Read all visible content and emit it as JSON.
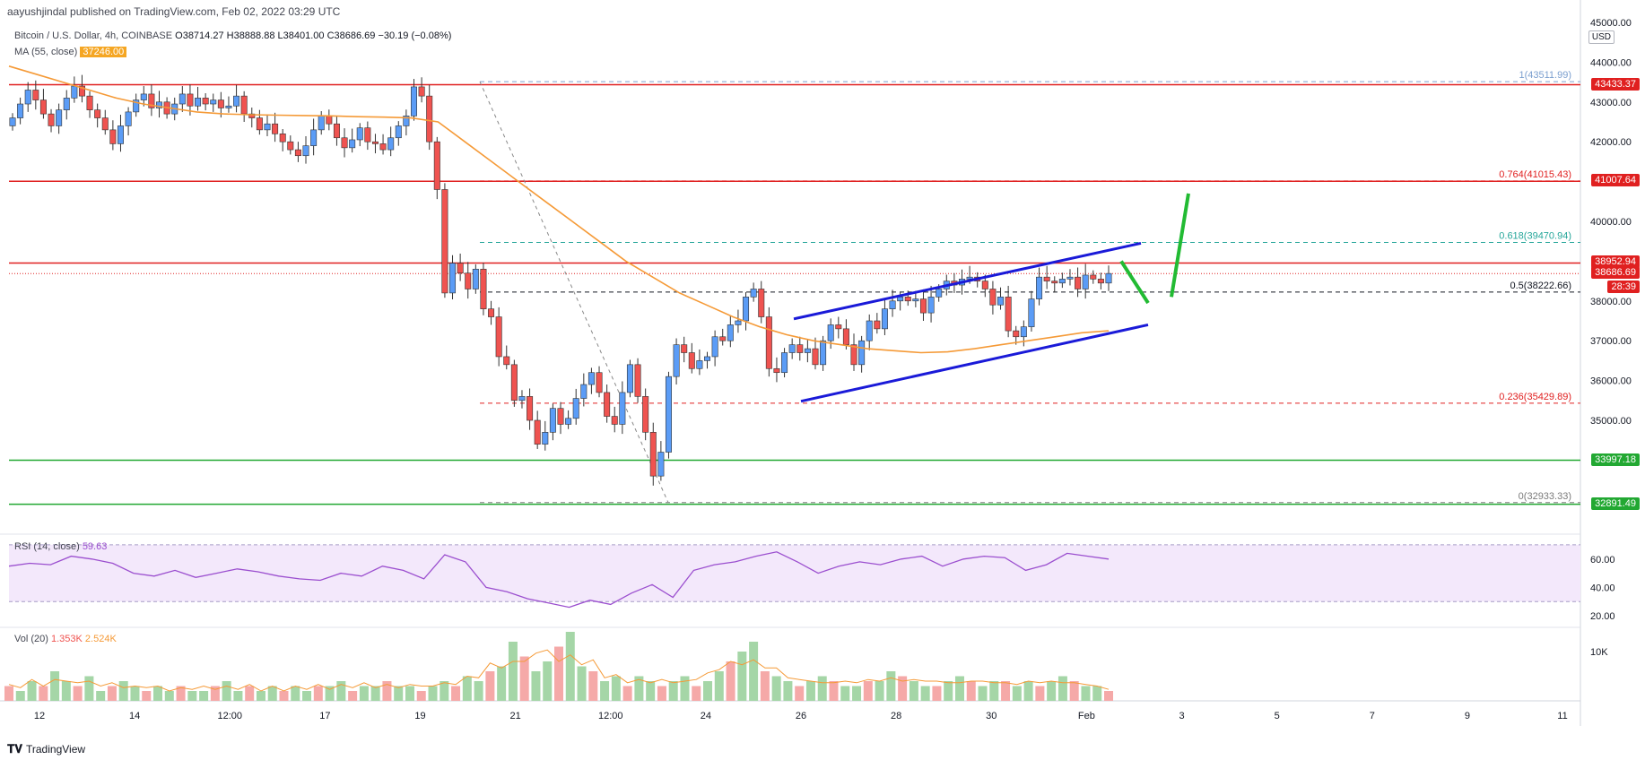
{
  "header": {
    "publisher": "aayushjindal published on TradingView.com, Feb 02, 2022 03:29 UTC",
    "symbol": "Bitcoin / U.S. Dollar, 4h, COINBASE",
    "ohlc": "O38714.27 H38888.88 L38401.00 C38686.69 −30.19 (−0.08%)",
    "ma_label": "MA (55, close)",
    "ma_value": "37246.00",
    "rsi_label": "RSI (14, close)",
    "rsi_value": "59.63",
    "vol_label": "Vol (20)",
    "vol_value1": "1.353K",
    "vol_value2": "2.524K",
    "currency": "USD"
  },
  "footer": {
    "brand": "TradingView",
    "logo_icon": "tradingview-logo-icon"
  },
  "colors": {
    "up": "#5b9cf6",
    "down": "#ef5350",
    "ma": "#f59a37",
    "resistance": "#e02020",
    "support": "#22a832",
    "channel": "#1a1ad8",
    "arrow": "#22bb33",
    "rsi": "#9b4fcf"
  },
  "price_axis": {
    "ticks": [
      "45000.00",
      "44000.00",
      "43000.00",
      "42000.00",
      "40000.00",
      "38000.00",
      "37000.00",
      "36000.00",
      "35000.00"
    ]
  },
  "time_axis": {
    "ticks": [
      "12",
      "14",
      "12:00",
      "17",
      "19",
      "21",
      "12:00",
      "24",
      "26",
      "28",
      "30",
      "Feb",
      "3",
      "5",
      "7",
      "9",
      "11"
    ]
  },
  "rsi_axis": {
    "ticks": [
      "60.00",
      "40.00",
      "20.00"
    ]
  },
  "vol_axis": {
    "ticks": [
      "10K"
    ]
  },
  "price_labels": [
    {
      "value": "43433.37",
      "kind": "resistance"
    },
    {
      "value": "41007.64",
      "kind": "resistance"
    },
    {
      "value": "38952.94",
      "kind": "resistance"
    },
    {
      "value": "38686.69",
      "kind": "current"
    },
    {
      "value": "28:39",
      "kind": "current"
    },
    {
      "value": "33997.18",
      "kind": "support"
    },
    {
      "value": "32891.49",
      "kind": "support"
    }
  ],
  "fib_labels": [
    {
      "text": "1(43511.99)",
      "level": 43511.99
    },
    {
      "text": "0.764(41015.43)",
      "level": 41015.43
    },
    {
      "text": "0.618(39470.94)",
      "level": 39470.94
    },
    {
      "text": "0.5(38222.66)",
      "level": 38222.66
    },
    {
      "text": "0.236(35429.89)",
      "level": 35429.89
    },
    {
      "text": "0(32933.33)",
      "level": 32933.33
    }
  ],
  "chart_data": {
    "type": "candlestick",
    "title": "Bitcoin / U.S. Dollar, 4h, COINBASE",
    "ylim": [
      32500,
      45000
    ],
    "horizontal_levels": {
      "resistance": [
        43433.37,
        41007.64,
        38952.94
      ],
      "support": [
        33997.18,
        32891.49
      ],
      "current": 38686.69
    },
    "close_path": [
      42600,
      42950,
      43300,
      43050,
      42700,
      42400,
      42800,
      43100,
      43400,
      43150,
      42800,
      42600,
      42300,
      41950,
      42400,
      42750,
      43050,
      43200,
      42850,
      43000,
      42700,
      42950,
      43200,
      42900,
      43100,
      42950,
      43050,
      42850,
      42900,
      43150,
      42700,
      42600,
      42300,
      42450,
      42200,
      42000,
      41800,
      41650,
      41900,
      42300,
      42650,
      42450,
      42100,
      41850,
      42050,
      42350,
      42000,
      41950,
      41800,
      42100,
      42400,
      42650,
      43380,
      43150,
      42000,
      40800,
      38200,
      38950,
      38700,
      38300,
      38800,
      37800,
      37600,
      36600,
      36400,
      35500,
      35600,
      35000,
      34400,
      34700,
      35300,
      34900,
      35050,
      35550,
      35900,
      36200,
      35700,
      35100,
      34900,
      35700,
      36400,
      35600,
      34700,
      33600,
      34200,
      36100,
      36900,
      36700,
      36300,
      36500,
      36600,
      37100,
      37000,
      37400,
      37500,
      38100,
      38300,
      37600,
      36300,
      36200,
      36700,
      36900,
      36700,
      36800,
      36400,
      37000,
      37400,
      37300,
      36900,
      36400,
      37000,
      37500,
      37300,
      37800,
      38000,
      38100,
      38000,
      38050,
      37700,
      38100,
      38300,
      38500,
      38400,
      38550,
      38600,
      38500,
      38300,
      37900,
      38100,
      37250,
      37100,
      37350,
      38050,
      38600,
      38500,
      38450,
      38550,
      38600,
      38300,
      38650,
      38550,
      38450,
      38690
    ],
    "ma55_path": [
      43900,
      43700,
      43500,
      43300,
      43100,
      42950,
      42850,
      42750,
      42700,
      42680,
      42670,
      42660,
      42650,
      42630,
      42620,
      42600,
      42500,
      42000,
      41500,
      41000,
      40500,
      40000,
      39500,
      39000,
      38600,
      38200,
      37900,
      37600,
      37350,
      37150,
      37000,
      36900,
      36800,
      36750,
      36700,
      36720,
      36800,
      36900,
      37000,
      37100,
      37200,
      37250
    ],
    "rsi_path": [
      55,
      57,
      56,
      62,
      60,
      57,
      50,
      48,
      52,
      47,
      50,
      53,
      51,
      48,
      46,
      45,
      50,
      48,
      55,
      52,
      46,
      63,
      58,
      40,
      37,
      32,
      29,
      26,
      31,
      28,
      36,
      42,
      33,
      52,
      56,
      58,
      62,
      65,
      58,
      50,
      55,
      58,
      56,
      60,
      62,
      55,
      60,
      62,
      61,
      52,
      56,
      64,
      62,
      60
    ],
    "volume_path": [
      3,
      2,
      4,
      3,
      6,
      4,
      3,
      5,
      2,
      3,
      4,
      3,
      2,
      3,
      2,
      3,
      2,
      2,
      3,
      4,
      2,
      3,
      2,
      3,
      2,
      3,
      2,
      3,
      3,
      4,
      2,
      3,
      3,
      4,
      3,
      3,
      2,
      3,
      4,
      3,
      5,
      4,
      6,
      7,
      12,
      9,
      6,
      8,
      11,
      14,
      7,
      6,
      4,
      5,
      3,
      5,
      4,
      3,
      4,
      5,
      3,
      4,
      6,
      8,
      10,
      12,
      6,
      5,
      4,
      3,
      4,
      5,
      4,
      3,
      3,
      4,
      4,
      6,
      5,
      4,
      3,
      3,
      4,
      5,
      4,
      3,
      4,
      4,
      3,
      4,
      3,
      4,
      5,
      4,
      3,
      3,
      2
    ]
  }
}
